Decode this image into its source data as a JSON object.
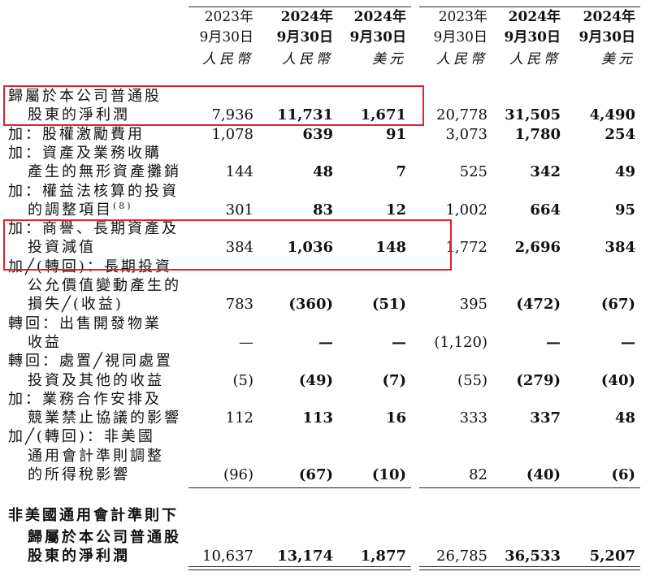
{
  "columns": [
    {
      "year": "2023年",
      "date": "9月30日",
      "currency": "人民幣",
      "bold": false
    },
    {
      "year": "2024年",
      "date": "9月30日",
      "currency": "人民幣",
      "bold": true
    },
    {
      "year": "2024年",
      "date": "9月30日",
      "currency": "美元",
      "bold": true
    },
    {
      "year": "2023年",
      "date": "9月30日",
      "currency": "人民幣",
      "bold": false
    },
    {
      "year": "2024年",
      "date": "9月30日",
      "currency": "人民幣",
      "bold": true
    },
    {
      "year": "2024年",
      "date": "9月30日",
      "currency": "美元",
      "bold": true
    }
  ],
  "rows": [
    {
      "label": "歸屬於本公司普通股",
      "ind": false,
      "values": []
    },
    {
      "label": "股東的淨利潤",
      "ind": true,
      "values": [
        "7,936",
        "11,731",
        "1,671",
        "20,778",
        "31,505",
        "4,490"
      ]
    },
    {
      "label": "加：股權激勵費用",
      "ind": false,
      "values": [
        "1,078",
        "639",
        "91",
        "3,073",
        "1,780",
        "254"
      ]
    },
    {
      "label": "加：資產及業務收購",
      "ind": false,
      "values": []
    },
    {
      "label": "產生的無形資產攤銷",
      "ind": true,
      "values": [
        "144",
        "48",
        "7",
        "525",
        "342",
        "49"
      ]
    },
    {
      "label": "加：權益法核算的投資",
      "ind": false,
      "values": []
    },
    {
      "label": "的調整項目",
      "ind": true,
      "sup": "(8)",
      "values": [
        "301",
        "83",
        "12",
        "1,002",
        "664",
        "95"
      ]
    },
    {
      "label": "加：商譽、長期資產及",
      "ind": false,
      "values": []
    },
    {
      "label": "投資減值",
      "ind": true,
      "values": [
        "384",
        "1,036",
        "148",
        "1,772",
        "2,696",
        "384"
      ]
    },
    {
      "label": "加╱(轉回)：長期投資",
      "ind": false,
      "values": []
    },
    {
      "label": "公允價值變動產生的",
      "ind": true,
      "values": []
    },
    {
      "label": "損失╱(收益)",
      "ind": true,
      "values": [
        "783",
        "(360)",
        "(51)",
        "395",
        "(472)",
        "(67)"
      ]
    },
    {
      "label": "轉回：出售開發物業",
      "ind": false,
      "values": []
    },
    {
      "label": "收益",
      "ind": true,
      "values": [
        "—",
        "—",
        "—",
        "(1,120)",
        "—",
        "—"
      ]
    },
    {
      "label": "轉回：處置╱視同處置",
      "ind": false,
      "values": []
    },
    {
      "label": "投資及其他的收益",
      "ind": true,
      "values": [
        "(5)",
        "(49)",
        "(7)",
        "(55)",
        "(279)",
        "(40)"
      ]
    },
    {
      "label": "加：業務合作安排及",
      "ind": false,
      "values": []
    },
    {
      "label": "競業禁止協議的影響",
      "ind": true,
      "values": [
        "112",
        "113",
        "16",
        "333",
        "337",
        "48"
      ]
    },
    {
      "label": "加╱(轉回)：非美國",
      "ind": false,
      "values": []
    },
    {
      "label": "通用會計準則調整",
      "ind": true,
      "values": []
    },
    {
      "label": "的所得稅影響",
      "ind": true,
      "values": [
        "(96)",
        "(67)",
        "(10)",
        "82",
        "(40)",
        "(6)"
      ]
    }
  ],
  "total": {
    "label_lines": [
      "非美國通用會計準則下",
      "歸屬於本公司普通股",
      "股東的淨利潤"
    ],
    "values": [
      "10,637",
      "13,174",
      "1,877",
      "26,785",
      "36,533",
      "5,207"
    ]
  },
  "highlight_color": "#e0202a"
}
